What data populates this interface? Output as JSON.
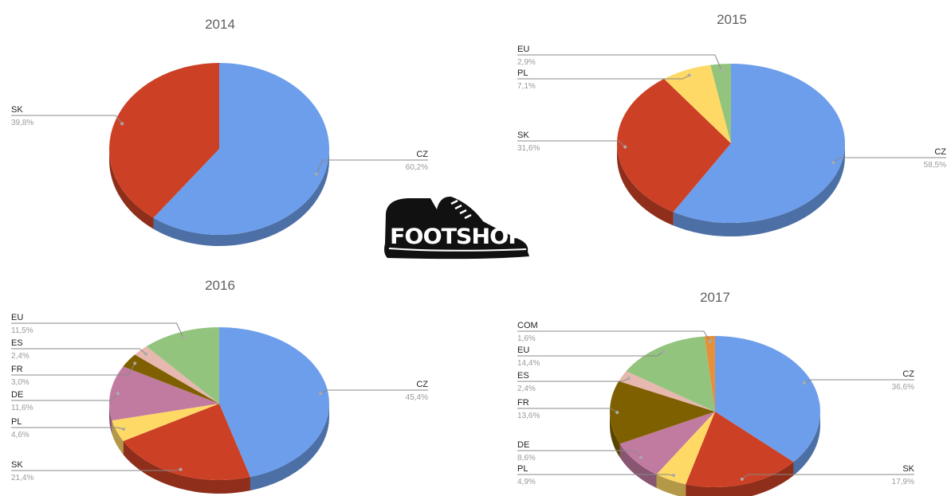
{
  "colors": {
    "CZ": "#6d9eeb",
    "SK": "#cc4125",
    "PL": "#ffd966",
    "EU": "#93c47d",
    "DE": "#c27ba0",
    "FR": "#7f6000",
    "ES": "#e6b8af",
    "COM": "#e69138"
  },
  "logo": {
    "text": "FOOTSHOP"
  },
  "chart_data": [
    {
      "type": "pie",
      "title": "2014",
      "slices": [
        {
          "name": "CZ",
          "label": "60,2%",
          "value": 60.2
        },
        {
          "name": "SK",
          "label": "39,8%",
          "value": 39.8
        }
      ]
    },
    {
      "type": "pie",
      "title": "2015",
      "slices": [
        {
          "name": "CZ",
          "label": "58,5%",
          "value": 58.5
        },
        {
          "name": "SK",
          "label": "31,6%",
          "value": 31.6
        },
        {
          "name": "PL",
          "label": "7,1%",
          "value": 7.1
        },
        {
          "name": "EU",
          "label": "2,9%",
          "value": 2.9
        }
      ]
    },
    {
      "type": "pie",
      "title": "2016",
      "slices": [
        {
          "name": "CZ",
          "label": "45,4%",
          "value": 45.4
        },
        {
          "name": "SK",
          "label": "21,4%",
          "value": 21.4
        },
        {
          "name": "PL",
          "label": "4,6%",
          "value": 4.6
        },
        {
          "name": "DE",
          "label": "11,6%",
          "value": 11.6
        },
        {
          "name": "FR",
          "label": "3,0%",
          "value": 3.0
        },
        {
          "name": "ES",
          "label": "2,4%",
          "value": 2.4
        },
        {
          "name": "EU",
          "label": "11,5%",
          "value": 11.5
        }
      ]
    },
    {
      "type": "pie",
      "title": "2017",
      "slices": [
        {
          "name": "CZ",
          "label": "36,6%",
          "value": 36.6
        },
        {
          "name": "SK",
          "label": "17,9%",
          "value": 17.9
        },
        {
          "name": "PL",
          "label": "4,9%",
          "value": 4.9
        },
        {
          "name": "DE",
          "label": "8,6%",
          "value": 8.6
        },
        {
          "name": "FR",
          "label": "13,6%",
          "value": 13.6
        },
        {
          "name": "ES",
          "label": "2,4%",
          "value": 2.4
        },
        {
          "name": "EU",
          "label": "14,4%",
          "value": 14.4
        },
        {
          "name": "COM",
          "label": "1,6%",
          "value": 1.6
        }
      ]
    }
  ]
}
